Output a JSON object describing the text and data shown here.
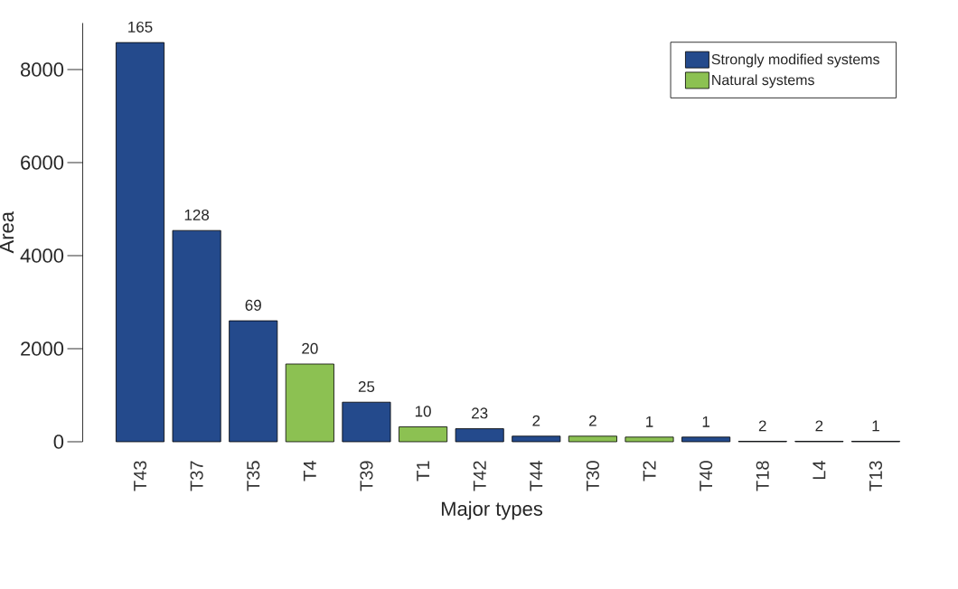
{
  "chart_data": {
    "type": "bar",
    "xlabel": "Major types",
    "ylabel": "Area",
    "categories": [
      "T43",
      "T37",
      "T35",
      "T4",
      "T39",
      "T1",
      "T42",
      "T44",
      "T30",
      "T2",
      "T40",
      "T18",
      "L4",
      "T13"
    ],
    "series": [
      {
        "name": "Strongly modified systems",
        "color": "#244a8c",
        "values": [
          8580,
          4540,
          2600,
          null,
          850,
          null,
          280,
          120,
          null,
          null,
          100,
          10,
          10,
          10
        ]
      },
      {
        "name": "Natural systems",
        "color": "#8cc152",
        "values": [
          null,
          null,
          null,
          1670,
          null,
          320,
          null,
          null,
          120,
          100,
          null,
          null,
          null,
          null
        ]
      }
    ],
    "annotations": [
      {
        "text": "165",
        "x": "T43",
        "y": 8580
      },
      {
        "text": "128",
        "x": "T37",
        "y": 4540
      },
      {
        "text": "69",
        "x": "T35",
        "y": 2600
      },
      {
        "text": "20",
        "x": "T4",
        "y": 1670
      },
      {
        "text": "25",
        "x": "T39",
        "y": 850
      },
      {
        "text": "10",
        "x": "T1",
        "y": 320
      },
      {
        "text": "23",
        "x": "T42",
        "y": 280
      },
      {
        "text": "2",
        "x": "T44",
        "y": 120
      },
      {
        "text": "2",
        "x": "T30",
        "y": 120
      },
      {
        "text": "1",
        "x": "T2",
        "y": 100
      },
      {
        "text": "1",
        "x": "T40",
        "y": 100
      },
      {
        "text": "2",
        "x": "T18",
        "y": 10
      },
      {
        "text": "2",
        "x": "L4",
        "y": 10
      },
      {
        "text": "1",
        "x": "T13",
        "y": 10
      }
    ],
    "ylim": [
      0,
      9000
    ],
    "yticks": [
      0,
      2000,
      4000,
      6000,
      8000
    ],
    "legend": "top right"
  }
}
